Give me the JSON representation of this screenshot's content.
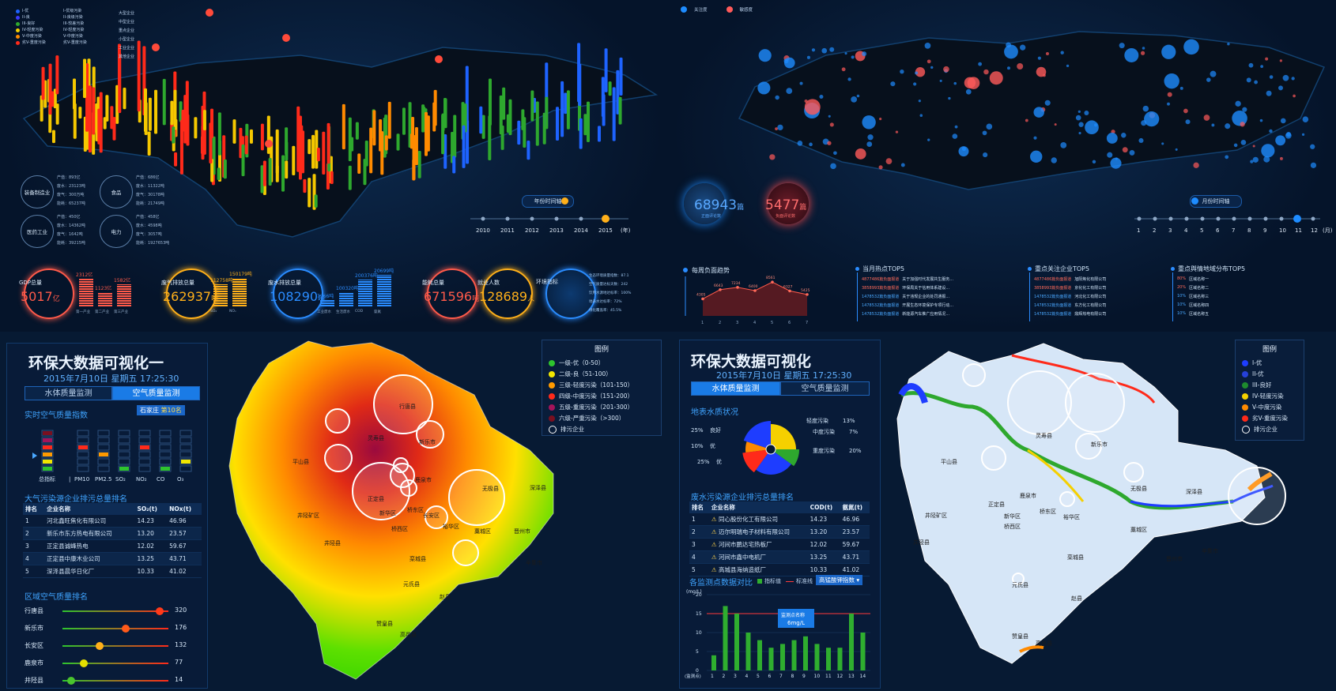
{
  "q1": {
    "map_legend": [
      "I-优",
      "II-良",
      "III-良好",
      "IV-轻度污染",
      "V-中度污染",
      "劣V-重度污染"
    ],
    "map_legend_colors": [
      "#1e63ff",
      "#3a3aff",
      "#2ea82e",
      "#f5d000",
      "#ff8a00",
      "#ff2a1a"
    ],
    "map_legend2": [
      "I-优级污染",
      "II-良级污染",
      "III-较差污染",
      "IV-轻度污染",
      "V-中度污染",
      "劣V-重度污染"
    ],
    "map_legend3": [
      "大型企业",
      "中型企业",
      "重点企业",
      "小型企业",
      "工业企业",
      "其他企业"
    ],
    "industries": [
      {
        "name": "装备制造业",
        "lines": [
          "产值：893亿",
          "废水：23123吨",
          "废气：300万吨",
          "能耗：65237吨"
        ]
      },
      {
        "name": "食品",
        "lines": [
          "产值：686亿",
          "废水：11322吨",
          "废气：30178吨",
          "能耗：21749吨"
        ]
      },
      {
        "name": "医药工业",
        "lines": [
          "产值：450亿",
          "废水：14362吨",
          "废气：1642吨",
          "能耗：39215吨"
        ]
      },
      {
        "name": "电力",
        "lines": [
          "产值：458亿",
          "废水：4598吨",
          "废气：3057吨",
          "能耗：1927653吨"
        ]
      }
    ],
    "timeline_label": "年份时间轴",
    "years": [
      "2010",
      "2011",
      "2012",
      "2013",
      "2014",
      "2015"
    ],
    "years_unit": "(年)",
    "kpis": {
      "gdp": {
        "label": "GDP总量",
        "value": "5017",
        "unit": "亿",
        "bars": [
          "2312亿",
          "1123亿",
          "1582亿"
        ],
        "axis": [
          "第一产业",
          "第二产业",
          "第三产业"
        ]
      },
      "gas": {
        "label": "废气排放总量",
        "value": "262937",
        "unit": "吨",
        "bars": [
          "112758吨",
          "150179吨"
        ],
        "axis": [
          "SO₂",
          "NOₓ"
        ]
      },
      "water": {
        "label": "废水排放总量",
        "value": "108290",
        "unit": "吨",
        "bars": [
          "7966吨",
          "100320吨",
          "200376吨",
          "20699吨"
        ],
        "axis": [
          "工业废水",
          "生活废水",
          "COD",
          "氨氮"
        ]
      },
      "energy": {
        "label": "能耗总量",
        "value": "671596",
        "unit": "吨"
      },
      "jobs": {
        "label": "就业人数",
        "value": "128689",
        "unit": "人"
      },
      "env": {
        "label": "环境指标",
        "items": [
          "生态环境质量指数：87.1",
          "空气质量达标天数：242",
          "饮用水源地达标率：100%",
          "地表水达标率：72%",
          "绿化覆盖率：45.5%"
        ]
      }
    }
  },
  "q2": {
    "legend": [
      "关注度",
      "敏感度"
    ],
    "count1": {
      "value": "68943",
      "unit": "篇",
      "label": "正面评论数"
    },
    "count2": {
      "value": "5477",
      "unit": "篇",
      "label": "负面评论数"
    },
    "timeline_label": "月份时间轴",
    "months": [
      "1",
      "2",
      "3",
      "4",
      "5",
      "6",
      "7",
      "8",
      "9",
      "10",
      "11",
      "12"
    ],
    "months_unit": "(月)",
    "trend_title": "每周负面趋势",
    "trend_values": [
      "4305",
      "6643",
      "7234",
      "6400",
      "8561",
      "6327",
      "5425"
    ],
    "trend_x": [
      "1",
      "2",
      "3",
      "4",
      "5",
      "6",
      "7"
    ],
    "hot_title": "当月热点TOP5",
    "hot": [
      "关于加强时代发展共生服务...",
      "环保局关于信用体系建设...",
      "关于违规企业的处罚通报...",
      "开展生态环境保护专项行动...",
      "新能源汽车推广应用情况..."
    ],
    "hot_tags": [
      "4877486篇负面报道",
      "3858993篇负面报道",
      "1478532篇负面报道",
      "1478532篇负面报道",
      "1478532篇负面报道"
    ],
    "ent_title": "重点关注企业TOP5",
    "ent": [
      "旭阳焦化有限公司",
      "京化化工有限公司",
      "河北化工有限公司",
      "东方化工有限公司",
      "鼎辉热电有限公司"
    ],
    "region_title": "重点舆情地域分布TOP5",
    "region_pct": [
      "80%",
      "20%",
      "10%",
      "10%",
      "10%"
    ],
    "region": [
      "区域名称一",
      "区域名称二",
      "区域名称三",
      "区域名称四",
      "区域名称五"
    ]
  },
  "q3": {
    "title": "环保大数据可视化一",
    "date": "2015年7月10日 星期五 17:25:30",
    "tab1": "水体质量监测",
    "tab2": "空气质量监测",
    "aqi_title": "实时空气质量指数",
    "city": "石家庄",
    "rank": "第10名",
    "aqi_axis": [
      "总指标",
      "|",
      "PM10",
      "PM2.5",
      "SO₂",
      "NO₂",
      "CO",
      "O₃"
    ],
    "rank_title": "大气污染源企业排污总量排名",
    "rank_headers": [
      "排名",
      "企业名称",
      "SO₂(t)",
      "NOx(t)"
    ],
    "rank_rows": [
      [
        "1",
        "河北鑫旺焦化有限公司",
        "14.23",
        "46.96"
      ],
      [
        "2",
        "新乐市东方热电有限公司",
        "13.20",
        "23.57"
      ],
      [
        "3",
        "正定县诚峰热电",
        "12.02",
        "59.67"
      ],
      [
        "4",
        "正定县中康木业公司",
        "13.25",
        "43.71"
      ],
      [
        "5",
        "深泽县晨华日化厂",
        "10.33",
        "41.02"
      ]
    ],
    "region_title": "区域空气质量排名",
    "regions": [
      {
        "name": "行唐县",
        "value": "320",
        "pct": 0.92
      },
      {
        "name": "新乐市",
        "value": "176",
        "pct": 0.6
      },
      {
        "name": "长安区",
        "value": "132",
        "pct": 0.35
      },
      {
        "name": "鹿泉市",
        "value": "77",
        "pct": 0.2
      },
      {
        "name": "井陉县",
        "value": "14",
        "pct": 0.08
      }
    ],
    "legend_title": "图例",
    "legend": [
      {
        "label": "一级-优（0-50）",
        "color": "#2ec42e"
      },
      {
        "label": "二级-良（51-100）",
        "color": "#f2e600"
      },
      {
        "label": "三级-轻度污染（101-150）",
        "color": "#ff9a00"
      },
      {
        "label": "四级-中度污染（151-200）",
        "color": "#ff2a1a"
      },
      {
        "label": "五级-重度污染（201-300）",
        "color": "#a3145a"
      },
      {
        "label": "六级-严重污染（>300）",
        "color": "#7a1020"
      },
      {
        "label": "排污企业",
        "color": "ring"
      }
    ],
    "map_labels": [
      "平山县",
      "行唐县",
      "灵寿县",
      "新乐市",
      "无极县",
      "深泽县",
      "正定县",
      "鹿泉市",
      "新华区",
      "桥东区",
      "长安区",
      "井陉矿区",
      "桥西区",
      "裕华区",
      "藁城区",
      "晋州市",
      "辛集市",
      "井陉县",
      "栾城县",
      "元氏县",
      "赵县",
      "赞皇县",
      "高邑县"
    ]
  },
  "q4": {
    "title": "环保大数据可视化",
    "date": "2015年7月10日 星期五 17:25:30",
    "tab1": "水体质量监测",
    "tab2": "空气质量监测",
    "water_title": "地表水质状况",
    "pie_labels": [
      {
        "label": "良好",
        "pct": "25%"
      },
      {
        "label": "优",
        "pct": "10%"
      },
      {
        "label": "优",
        "pct": "25%"
      },
      {
        "label": "轻度污染",
        "pct": "13%"
      },
      {
        "label": "中度污染",
        "pct": "7%"
      },
      {
        "label": "重度污染",
        "pct": "20%"
      }
    ],
    "rank_title": "废水污染源企业排污总量排名",
    "rank_headers": [
      "排名",
      "企业名称",
      "COD(t)",
      "氨氮(t)"
    ],
    "rank_rows": [
      [
        "1",
        "同心股份化工有限公司",
        "14.23",
        "46.96"
      ],
      [
        "2",
        "迈尔明瑞电子材料有限公司",
        "13.20",
        "23.57"
      ],
      [
        "3",
        "河间市鹏达宅热板厂",
        "12.02",
        "59.67"
      ],
      [
        "4",
        "河间市鑫中电机厂",
        "13.25",
        "43.71"
      ],
      [
        "5",
        "高城县海纳造纸厂",
        "10.33",
        "41.02"
      ]
    ],
    "compare_title": "各监测点数据对比",
    "compare_legend1": "指标值",
    "compare_legend2": "标准线",
    "compare_select": "高锰酸钾指数",
    "compare_unit": "(mg/L)",
    "compare_x_label": "(监测点)",
    "compare_x": [
      "1",
      "2",
      "3",
      "4",
      "5",
      "6",
      "7",
      "8",
      "9",
      "10",
      "11",
      "12",
      "13",
      "14"
    ],
    "compare_values": [
      4,
      17,
      15,
      10,
      8,
      6,
      7,
      8,
      9,
      7,
      6,
      6,
      15,
      10
    ],
    "compare_y": [
      "0",
      "5",
      "10",
      "15",
      "20"
    ],
    "tooltip": [
      "监测点名称",
      "6mg/L"
    ],
    "legend_title": "图例",
    "legend": [
      {
        "label": "I-优",
        "color": "#1e3dff"
      },
      {
        "label": "II-优",
        "color": "#2640d8"
      },
      {
        "label": "III-良好",
        "color": "#1e8a2e"
      },
      {
        "label": "IV-轻度污染",
        "color": "#f5d000"
      },
      {
        "label": "V-中度污染",
        "color": "#ff8a00"
      },
      {
        "label": "劣V-重度污染",
        "color": "#ff2a1a"
      },
      {
        "label": "排污企业",
        "color": "ring"
      }
    ],
    "map_labels": [
      "平山县",
      "灵寿县",
      "新乐市",
      "无极县",
      "深泽县",
      "正定县",
      "鹿泉市",
      "新华区",
      "桥东区",
      "裕华区",
      "井陉矿区",
      "桥西区",
      "藁城区",
      "晋州市",
      "辛集市",
      "井陉县",
      "栾城县",
      "元氏县",
      "赵县",
      "赞皇县",
      "高邑县"
    ]
  }
}
